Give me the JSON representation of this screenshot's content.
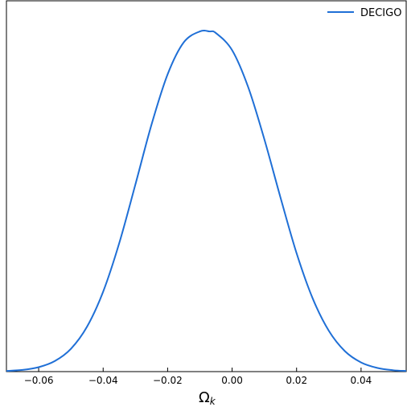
{
  "chart_data": {
    "type": "line",
    "title": "",
    "xlabel": "Ω",
    "xlabel_subscript": "k",
    "ylabel": "",
    "xlim": [
      -0.07,
      0.054
    ],
    "ylim": [
      0,
      1.09
    ],
    "x_ticks": [
      -0.06,
      -0.04,
      -0.02,
      0.0,
      0.02,
      0.04
    ],
    "x_tick_labels": [
      "−0.06",
      "−0.04",
      "−0.02",
      "0.00",
      "0.02",
      "0.04"
    ],
    "y_ticks_shown": false,
    "grid": false,
    "legend_position": "top-right",
    "series": [
      {
        "name": "DECIGO",
        "color": "#1f6fd6",
        "x": [
          -0.07,
          -0.065,
          -0.06,
          -0.055,
          -0.05,
          -0.045,
          -0.04,
          -0.035,
          -0.03,
          -0.025,
          -0.02,
          -0.015,
          -0.01,
          -0.007,
          -0.005,
          0.0,
          0.005,
          0.01,
          0.015,
          0.02,
          0.025,
          0.03,
          0.035,
          0.04,
          0.045,
          0.05,
          0.054
        ],
        "values": [
          0.002,
          0.005,
          0.013,
          0.031,
          0.067,
          0.132,
          0.235,
          0.378,
          0.55,
          0.726,
          0.874,
          0.968,
          1.0,
          1.0,
          0.995,
          0.945,
          0.836,
          0.683,
          0.512,
          0.348,
          0.215,
          0.12,
          0.06,
          0.027,
          0.011,
          0.004,
          0.002
        ]
      }
    ]
  }
}
